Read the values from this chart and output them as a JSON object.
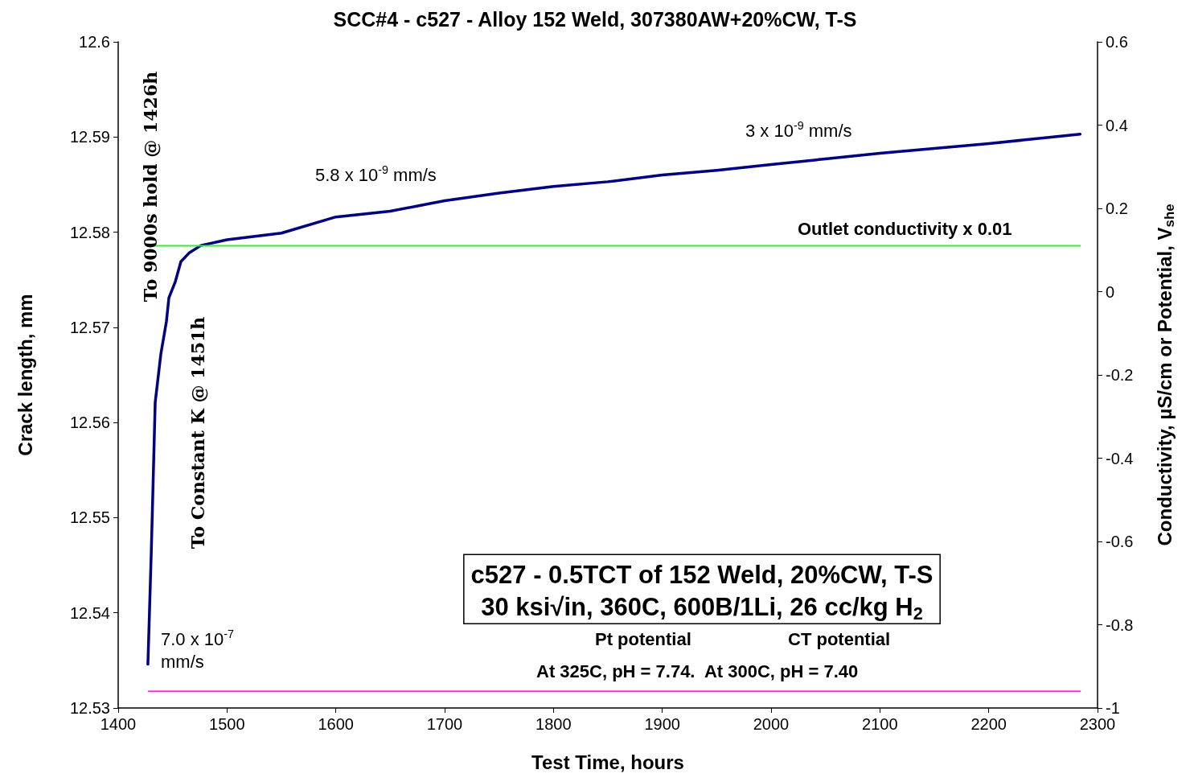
{
  "chart_data": {
    "type": "line",
    "title": "SCC#4 - c527 - Alloy 152 Weld, 307380AW+20%CW, T-S",
    "xlabel": "Test Time, hours",
    "ylabel": "Crack length, mm",
    "y2label": "Conductivity, µS/cm or Potential, V$_{she}$",
    "xlim": [
      1400,
      2300
    ],
    "xticks": [
      1400,
      1500,
      1600,
      1700,
      1800,
      1900,
      2000,
      2100,
      2200,
      2300
    ],
    "ylim": [
      12.53,
      12.6
    ],
    "yticks": [
      12.53,
      12.54,
      12.55,
      12.56,
      12.57,
      12.58,
      12.59,
      12.6
    ],
    "y2lim": [
      -1,
      0.6
    ],
    "y2ticks": [
      -1,
      -0.8,
      -0.6,
      -0.4,
      -0.2,
      0,
      0.2,
      0.4,
      0.6
    ],
    "grid": false,
    "marker": "none",
    "line_style": "solid",
    "series": [
      {
        "color": "#000080",
        "x": [
          1427.3,
          1430.3,
          1431.8,
          1434,
          1439.2,
          1444.3,
          1446.6,
          1452.5,
          1457.6,
          1465,
          1476,
          1500,
          1550,
          1600,
          1650,
          1700,
          1750,
          1800,
          1850,
          1900,
          1950,
          2000,
          2050,
          2100,
          2150,
          2200,
          2250,
          2284
        ],
        "values": [
          12.5346,
          12.546,
          12.5524,
          12.5621,
          12.5672,
          12.5706,
          12.5731,
          12.5748,
          12.5769,
          12.5778,
          12.5786,
          12.5792,
          12.5799,
          12.5816,
          12.5822,
          12.5833,
          12.5841,
          12.5848,
          12.5853,
          12.586,
          12.5865,
          12.5871,
          12.5877,
          12.5883,
          12.5888,
          12.5893,
          12.5899,
          12.5903
        ]
      },
      {
        "color": "#33ee33",
        "axis": "y2",
        "x": [
          1428,
          1600,
          1800,
          2000,
          2100,
          2284
        ],
        "values": [
          0.11,
          0.11,
          0.11,
          0.11,
          0.11,
          0.11
        ]
      },
      {
        "color": "#ff33cc",
        "axis": "y2",
        "x": [
          1428,
          1600,
          1800,
          2000,
          2100,
          2284
        ],
        "values": [
          -0.96,
          -0.96,
          -0.96,
          -0.96,
          -0.96,
          -0.96
        ]
      }
    ],
    "annotations": [
      "To 9000s hold @ 1426h",
      "To Constant K @ 1451h",
      "7.0 x 10$^{-7}$\nmm/s",
      "5.8 x 10$^{-9}$ mm/s",
      "3 x 10$^{-9}$ mm/s",
      "Outlet conductivity x 0.01",
      "c527 - 0.5TCT of 152 Weld, 20%CW, T-S\n30 ksi√in, 360C, 600B/1Li, 26 cc/kg H$_{2}$",
      "Pt potential",
      "CT potential",
      "At 325C, pH = 7.74.  At 300C, pH = 7.40"
    ]
  }
}
